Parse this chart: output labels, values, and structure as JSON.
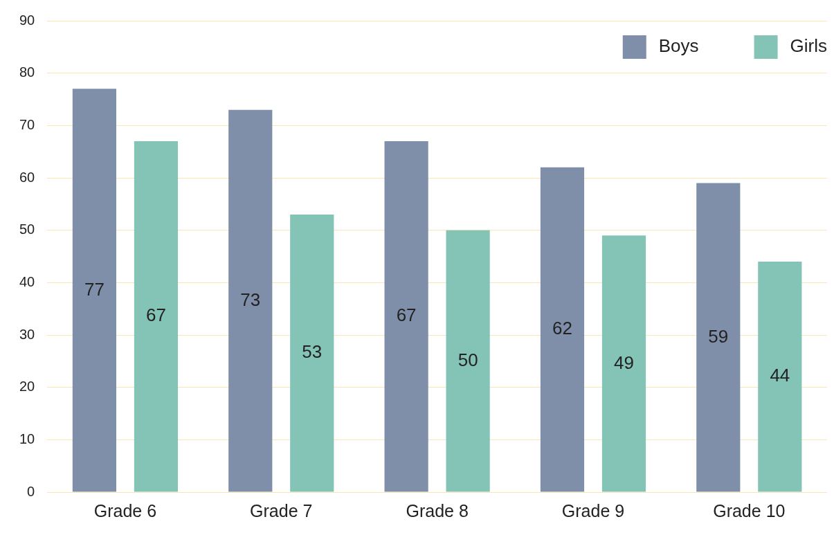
{
  "chart_data": {
    "type": "bar",
    "categories": [
      "Grade 6",
      "Grade 7",
      "Grade 8",
      "Grade 9",
      "Grade 10"
    ],
    "series": [
      {
        "name": "Boys",
        "color": "#7f8fa9",
        "values": [
          77,
          73,
          67,
          62,
          59
        ]
      },
      {
        "name": "Girls",
        "color": "#84c4b6",
        "values": [
          67,
          53,
          50,
          49,
          44
        ]
      }
    ],
    "ylim": [
      0,
      90
    ],
    "yticks": [
      0,
      10,
      20,
      30,
      40,
      50,
      60,
      70,
      80,
      90
    ],
    "grid": "y",
    "legend": "top right",
    "data_labels": true
  }
}
